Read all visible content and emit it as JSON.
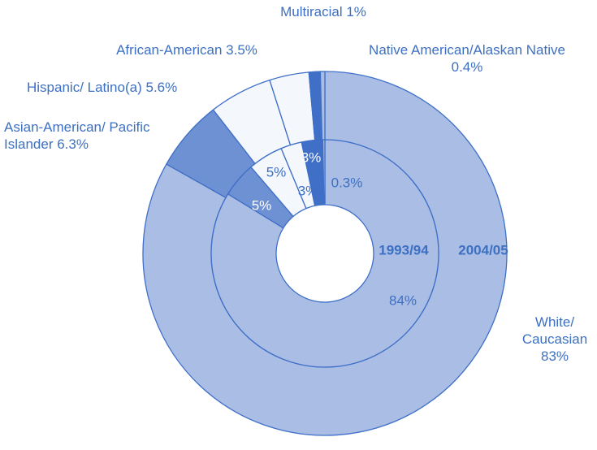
{
  "chart_data": {
    "type": "donut",
    "categories": [
      "White/ Caucasian",
      "Asian-American/ Pacific Islander",
      "Hispanic/ Latino(a)",
      "African-American",
      "Multiracial",
      "Native American/Alaskan Native"
    ],
    "series": [
      {
        "name": "2004/05",
        "values": [
          83,
          6.3,
          5.6,
          3.5,
          1,
          0.4
        ],
        "value_labels": [
          "83%",
          "6.3%",
          "5.6%",
          "3.5%",
          "1%",
          "0.4%"
        ],
        "colors": [
          "#aabde4",
          "#6e91d3",
          "#f4f7fc",
          "#f4f7fc",
          "#3f6fc7",
          "#aabde4"
        ]
      },
      {
        "name": "1993/94",
        "values": [
          84,
          5,
          5,
          3,
          3,
          0.3
        ],
        "value_labels": [
          "84%",
          "5%",
          "5%",
          "3%",
          "3%",
          "0.3%"
        ],
        "colors": [
          "#aabde4",
          "#6e91d3",
          "#f4f7fc",
          "#f4f7fc",
          "#3f6fc7",
          "#aabde4"
        ]
      }
    ]
  }
}
